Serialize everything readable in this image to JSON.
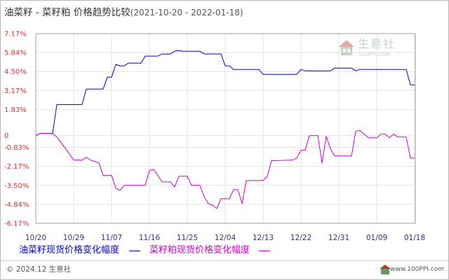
{
  "chart_data": {
    "type": "line",
    "title": "油菜籽 - 菜籽粕 价格趋势比较",
    "subtitle": "(2021-10-20 - 2022-01-18)",
    "xlim": [
      "2021-10-20",
      "2022-01-18"
    ],
    "ylim": [
      -6.17,
      7.17
    ],
    "grid": true,
    "legend_position": "bottom",
    "x_ticks": [
      {
        "date": "2021-10-20",
        "label": "10/20"
      },
      {
        "date": "2021-10-29",
        "label": "10/29"
      },
      {
        "date": "2021-11-07",
        "label": "11/07"
      },
      {
        "date": "2021-11-16",
        "label": "11/16"
      },
      {
        "date": "2021-11-25",
        "label": "11/25"
      },
      {
        "date": "2021-12-04",
        "label": "12/04"
      },
      {
        "date": "2021-12-13",
        "label": "12/13"
      },
      {
        "date": "2021-12-22",
        "label": "12/22"
      },
      {
        "date": "2021-12-31",
        "label": "12/31"
      },
      {
        "date": "2022-01-09",
        "label": "01/09"
      },
      {
        "date": "2022-01-18",
        "label": "01/18"
      }
    ],
    "y_ticks": [
      {
        "value": 7.17,
        "label": "7.17%"
      },
      {
        "value": 5.84,
        "label": "5.84%"
      },
      {
        "value": 4.5,
        "label": "4.50%"
      },
      {
        "value": 3.17,
        "label": "3.17%"
      },
      {
        "value": 1.83,
        "label": "1.83%"
      },
      {
        "value": 0,
        "label": "0"
      },
      {
        "value": -0.83,
        "label": "-0.83%"
      },
      {
        "value": -2.17,
        "label": "-2.17%"
      },
      {
        "value": -3.5,
        "label": "-3.50%"
      },
      {
        "value": -4.84,
        "label": "-4.84%"
      },
      {
        "value": -6.17,
        "label": "-6.17%"
      }
    ],
    "series": [
      {
        "name": "油菜籽现货价格变化幅度",
        "color": "#0000cc",
        "points": [
          [
            "2021-10-20",
            0
          ],
          [
            "2021-10-21",
            0.15
          ],
          [
            "2021-10-24",
            0.15
          ],
          [
            "2021-10-25",
            2.18
          ],
          [
            "2021-10-31",
            2.18
          ],
          [
            "2021-11-01",
            3.27
          ],
          [
            "2021-11-05",
            3.27
          ],
          [
            "2021-11-06",
            4.11
          ],
          [
            "2021-11-07",
            4.11
          ],
          [
            "2021-11-08",
            5.0
          ],
          [
            "2021-11-09",
            4.9
          ],
          [
            "2021-11-10",
            4.9
          ],
          [
            "2021-11-11",
            5.1
          ],
          [
            "2021-11-14",
            5.1
          ],
          [
            "2021-11-15",
            5.59
          ],
          [
            "2021-11-18",
            5.59
          ],
          [
            "2021-11-19",
            5.74
          ],
          [
            "2021-11-21",
            5.74
          ],
          [
            "2021-11-22",
            5.93
          ],
          [
            "2021-11-23",
            5.98
          ],
          [
            "2021-11-24",
            5.93
          ],
          [
            "2021-11-28",
            5.93
          ],
          [
            "2021-11-29",
            5.74
          ],
          [
            "2021-12-03",
            5.74
          ],
          [
            "2021-12-04",
            4.9
          ],
          [
            "2021-12-05",
            4.9
          ],
          [
            "2021-12-06",
            4.65
          ],
          [
            "2021-12-12",
            4.65
          ],
          [
            "2021-12-13",
            4.3
          ],
          [
            "2021-12-21",
            4.3
          ],
          [
            "2021-12-22",
            4.65
          ],
          [
            "2021-12-23",
            4.55
          ],
          [
            "2021-12-29",
            4.55
          ],
          [
            "2021-12-30",
            4.75
          ],
          [
            "2022-01-03",
            4.75
          ],
          [
            "2022-01-04",
            4.55
          ],
          [
            "2022-01-05",
            4.65
          ],
          [
            "2022-01-16",
            4.65
          ],
          [
            "2022-01-17",
            3.56
          ],
          [
            "2022-01-18",
            3.56
          ]
        ]
      },
      {
        "name": "菜籽粕现货价格变化幅度",
        "color": "#cc00cc",
        "points": [
          [
            "2021-10-20",
            0
          ],
          [
            "2021-10-21",
            0.15
          ],
          [
            "2021-10-24",
            0.15
          ],
          [
            "2021-10-25",
            -0.1
          ],
          [
            "2021-10-26",
            -0.5
          ],
          [
            "2021-10-27",
            -0.9
          ],
          [
            "2021-10-28",
            -1.3
          ],
          [
            "2021-10-29",
            -1.72
          ],
          [
            "2021-10-31",
            -1.72
          ],
          [
            "2021-11-01",
            -1.53
          ],
          [
            "2021-11-02",
            -1.72
          ],
          [
            "2021-11-04",
            -1.92
          ],
          [
            "2021-11-05",
            -2.81
          ],
          [
            "2021-11-07",
            -2.81
          ],
          [
            "2021-11-08",
            -3.7
          ],
          [
            "2021-11-09",
            -3.85
          ],
          [
            "2021-11-10",
            -3.5
          ],
          [
            "2021-11-15",
            -3.5
          ],
          [
            "2021-11-16",
            -2.46
          ],
          [
            "2021-11-17",
            -2.37
          ],
          [
            "2021-11-18",
            -2.81
          ],
          [
            "2021-11-19",
            -3.26
          ],
          [
            "2021-11-21",
            -3.26
          ],
          [
            "2021-11-22",
            -3.6
          ],
          [
            "2021-11-23",
            -2.86
          ],
          [
            "2021-11-25",
            -2.86
          ],
          [
            "2021-11-26",
            -3.5
          ],
          [
            "2021-11-28",
            -3.5
          ],
          [
            "2021-11-29",
            -4.29
          ],
          [
            "2021-11-30",
            -4.79
          ],
          [
            "2021-12-01",
            -4.89
          ],
          [
            "2021-12-02",
            -5.13
          ],
          [
            "2021-12-03",
            -4.44
          ],
          [
            "2021-12-05",
            -4.44
          ],
          [
            "2021-12-06",
            -3.8
          ],
          [
            "2021-12-07",
            -3.8
          ],
          [
            "2021-12-08",
            -4.79
          ],
          [
            "2021-12-09",
            -3.16
          ],
          [
            "2021-12-13",
            -3.16
          ],
          [
            "2021-12-14",
            -2.86
          ],
          [
            "2021-12-15",
            -1.77
          ],
          [
            "2021-12-20",
            -1.72
          ],
          [
            "2021-12-21",
            -1.58
          ],
          [
            "2021-12-22",
            -1.03
          ],
          [
            "2021-12-23",
            -1.03
          ],
          [
            "2021-12-24",
            0
          ],
          [
            "2021-12-26",
            0
          ],
          [
            "2021-12-27",
            -1.92
          ],
          [
            "2021-12-28",
            -0.05
          ],
          [
            "2021-12-29",
            -0.93
          ],
          [
            "2021-12-30",
            -1.43
          ],
          [
            "2022-01-03",
            -1.43
          ],
          [
            "2022-01-04",
            0.3
          ],
          [
            "2022-01-05",
            0.35
          ],
          [
            "2022-01-06",
            0.1
          ],
          [
            "2022-01-07",
            -0.15
          ],
          [
            "2022-01-09",
            -0.15
          ],
          [
            "2022-01-10",
            0.1
          ],
          [
            "2022-01-11",
            0.1
          ],
          [
            "2022-01-12",
            -0.15
          ],
          [
            "2022-01-13",
            0.1
          ],
          [
            "2022-01-14",
            -0.1
          ],
          [
            "2022-01-16",
            -0.1
          ],
          [
            "2022-01-17",
            -1.58
          ],
          [
            "2022-01-18",
            -1.58
          ]
        ]
      }
    ]
  },
  "colors": {
    "y_tick_text": "#cc3333",
    "x_tick_text": "#333377",
    "grid": "#e2e2e2",
    "plot_border": "#a0a0a0"
  },
  "watermark": {
    "icon": "house-logo-icon",
    "brand": "生意社",
    "site": "100PPI.COM"
  },
  "footer": {
    "copyright": "© 2024.12 生意社",
    "icon": "site-logo-icon",
    "site": "www.100PPI.com"
  }
}
